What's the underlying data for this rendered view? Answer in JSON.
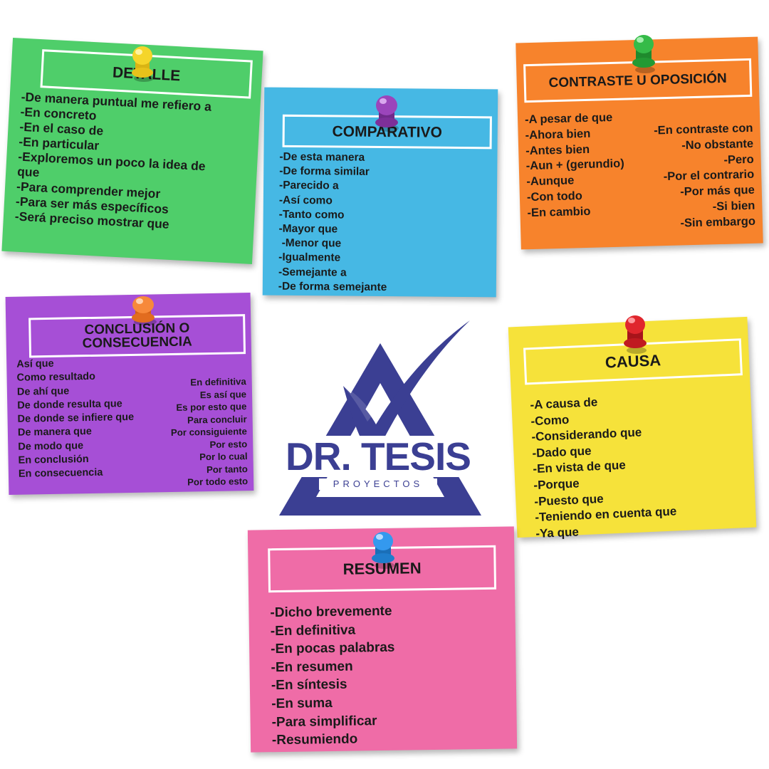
{
  "notes": {
    "detalle": {
      "title": "DETALLE",
      "color": "#4fce6a",
      "pin_color": "#f2cf1f",
      "items": [
        "-De manera puntual me refiero a",
        "-En concreto",
        "-En el caso de",
        "-En particular",
        "-Exploremos un poco la idea de",
        "que",
        "-Para comprender mejor",
        "-Para ser más específicos",
        "-Será preciso mostrar que"
      ]
    },
    "comparativo": {
      "title": "COMPARATIVO",
      "color": "#46b8e4",
      "pin_color": "#8e3aa8",
      "items": [
        "-De esta manera",
        "-De forma similar",
        "-Parecido a",
        "-Así como",
        "-Tanto como",
        "-Mayor que",
        " -Menor que",
        "-Igualmente",
        "-Semejante a",
        "-De forma semejante"
      ]
    },
    "contraste": {
      "title": "CONTRASTE U OPOSICIÓN",
      "color": "#f7832c",
      "pin_color": "#2fae3e",
      "items_left": [
        "-A pesar de que",
        "-Ahora bien",
        "-Antes bien",
        "-Aun + (gerundio)",
        "-Aunque",
        "-Con todo",
        "-En cambio"
      ],
      "items_right": [
        "-En contraste con",
        "-No obstante",
        "-Pero",
        "-Por el contrario",
        "-Por más que",
        "-Si bien",
        "-Sin embargo"
      ]
    },
    "conclusion": {
      "title_line1": "CONCLUSIÓN O",
      "title_line2": "CONSECUENCIA",
      "color": "#a64fd6",
      "pin_color": "#f47a2a",
      "items_left": [
        "Así que",
        "Como resultado",
        "De ahí que",
        "De donde resulta que",
        "De donde se infiere que",
        "De manera que",
        "De modo que",
        "En conclusión",
        "En consecuencia"
      ],
      "items_right": [
        "En definitiva",
        "Es así que",
        "Es por esto que",
        "Para concluir",
        "Por consiguiente",
        "Por esto",
        "Por lo cual",
        "Por tanto",
        "Por todo esto"
      ]
    },
    "causa": {
      "title": "CAUSA",
      "color": "#f6e23a",
      "pin_color": "#e01f25",
      "items": [
        "-A causa de",
        "-Como",
        "-Considerando que",
        "-Dado que",
        "-En vista de que",
        "-Porque",
        "-Puesto que",
        "-Teniendo en cuenta que",
        "-Ya que"
      ]
    },
    "resumen": {
      "title": "RESUMEN",
      "color": "#ef6ca7",
      "pin_color": "#2a8fe0",
      "items": [
        "-Dicho brevemente",
        "-En definitiva",
        "-En pocas palabras",
        "-En resumen",
        "-En síntesis",
        "-En suma",
        "-Para simplificar",
        "-Resumiendo"
      ]
    }
  },
  "logo": {
    "name": "DR. TESIS",
    "subtitle": "PROYECTOS",
    "color": "#3b3f93"
  }
}
